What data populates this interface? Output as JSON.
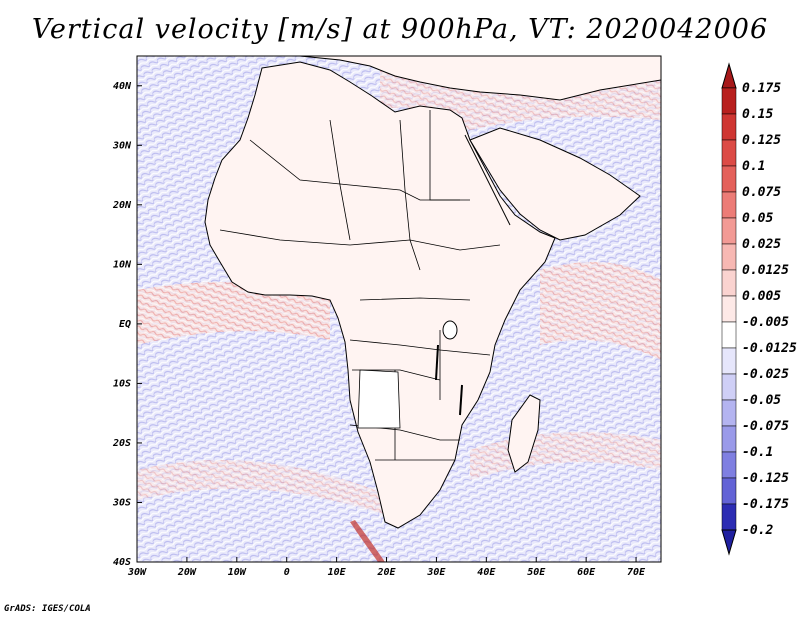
{
  "title": "Vertical velocity [m/s] at 900hPa, VT: 2020042006",
  "credit": "GrADS: IGES/COLA",
  "map": {
    "variable": "vertical velocity",
    "level": "900hPa",
    "lon_range": [
      -30,
      75
    ],
    "lat_range": [
      -40,
      45
    ],
    "lat_ticks": [
      {
        "value": 40,
        "label": "40N"
      },
      {
        "value": 30,
        "label": "30N"
      },
      {
        "value": 20,
        "label": "20N"
      },
      {
        "value": 10,
        "label": "10N"
      },
      {
        "value": 0,
        "label": "EQ"
      },
      {
        "value": -10,
        "label": "10S"
      },
      {
        "value": -20,
        "label": "20S"
      },
      {
        "value": -30,
        "label": "30S"
      },
      {
        "value": -40,
        "label": "40S"
      }
    ],
    "lon_ticks": [
      {
        "value": -30,
        "label": "30W"
      },
      {
        "value": -20,
        "label": "20W"
      },
      {
        "value": -10,
        "label": "10W"
      },
      {
        "value": 0,
        "label": "0"
      },
      {
        "value": 10,
        "label": "10E"
      },
      {
        "value": 20,
        "label": "20E"
      },
      {
        "value": 30,
        "label": "30E"
      },
      {
        "value": 40,
        "label": "40E"
      },
      {
        "value": 50,
        "label": "50E"
      },
      {
        "value": 60,
        "label": "60E"
      },
      {
        "value": 70,
        "label": "70E"
      }
    ],
    "land_color": "#ffffff",
    "border_color": "#000000"
  },
  "colorbar": {
    "position": "right",
    "levels": [
      {
        "label": "0.175",
        "color": "#b8201e"
      },
      {
        "label": "0.15",
        "color": "#cf3632"
      },
      {
        "label": "0.125",
        "color": "#dc4b46"
      },
      {
        "label": "0.1",
        "color": "#e4615b"
      },
      {
        "label": "0.075",
        "color": "#ec7c77"
      },
      {
        "label": "0.05",
        "color": "#f29a95"
      },
      {
        "label": "0.025",
        "color": "#f7b8b3"
      },
      {
        "label": "0.0125",
        "color": "#fad3d0"
      },
      {
        "label": "0.005",
        "color": "#fde9e7"
      },
      {
        "label": "-0.005",
        "color": "#ffffff"
      },
      {
        "label": "-0.0125",
        "color": "#e6e6fb"
      },
      {
        "label": "-0.025",
        "color": "#cfcff6"
      },
      {
        "label": "-0.05",
        "color": "#b4b4f0"
      },
      {
        "label": "-0.075",
        "color": "#9a9ae9"
      },
      {
        "label": "-0.1",
        "color": "#7f7fe1"
      },
      {
        "label": "-0.125",
        "color": "#6363d6"
      },
      {
        "label": "-0.175",
        "color": "#4646c7"
      },
      {
        "label": "-0.2",
        "color": "#2c2cb3"
      }
    ],
    "top_arrow_color": "#a7191a",
    "bottom_arrow_color": "#2020a0"
  }
}
